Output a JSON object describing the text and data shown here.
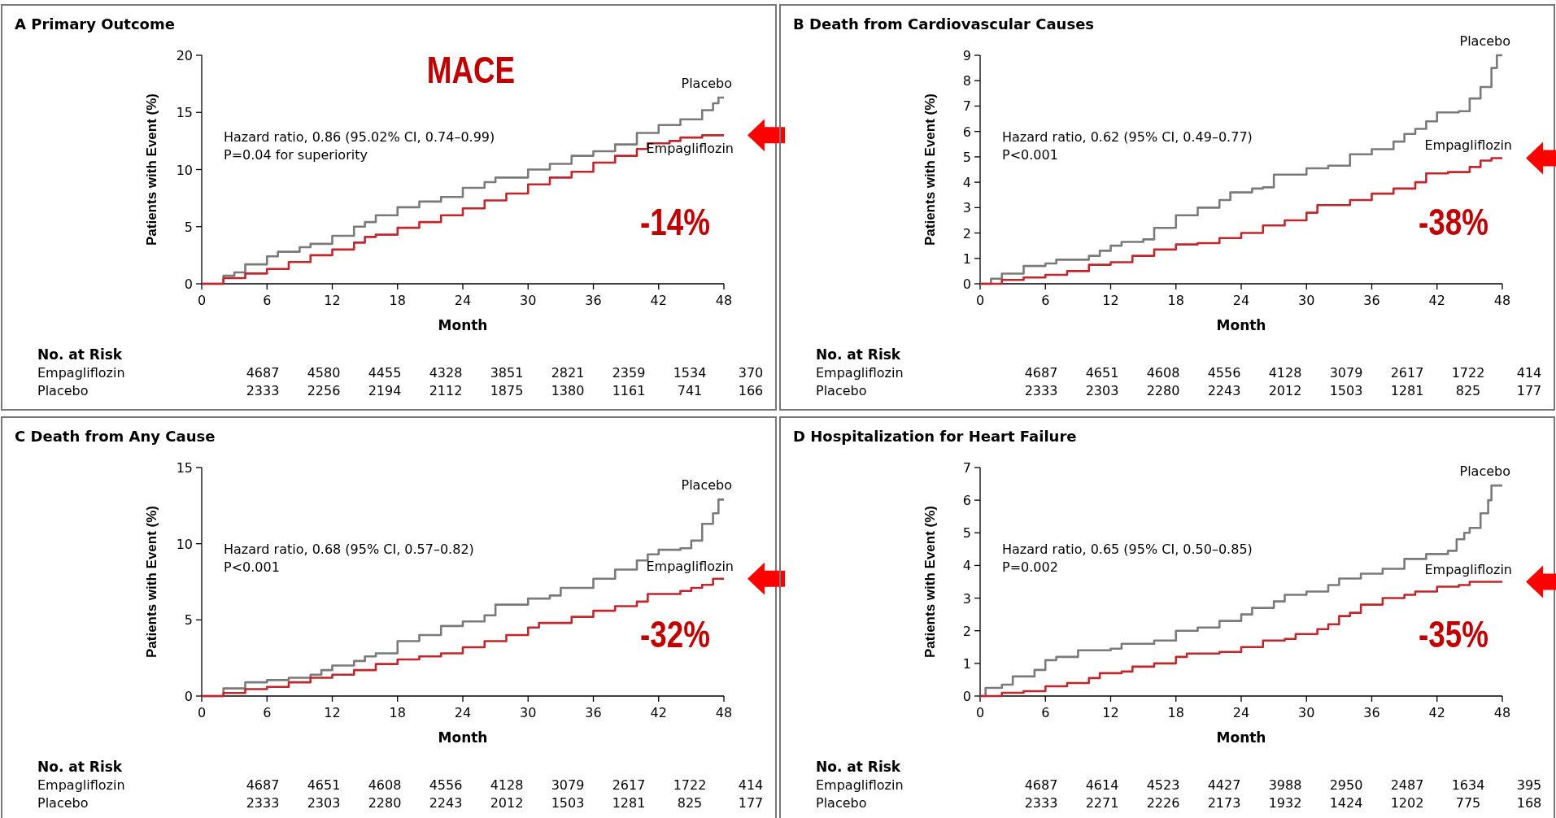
{
  "chart_data": [
    {
      "type": "step",
      "title": "A  Primary Outcome",
      "xlabel": "Month",
      "ylabel": "Patients with Event (%)",
      "xlim": [
        0,
        48
      ],
      "xticks": [
        0,
        6,
        12,
        18,
        24,
        30,
        36,
        42,
        48
      ],
      "ylim": [
        0,
        20
      ],
      "yticks": [
        0,
        5,
        10,
        15,
        20
      ],
      "legend": false,
      "annotations": [
        "Hazard ratio, 0.86 (95.02% CI, 0.74–0.99)",
        "P=0.04 for superiority",
        "-14%",
        "MACE",
        "No. at Risk",
        "Empagliflozin 4687 4580 4455 4328 3851 2821 2359 1534 370",
        "Placebo 2333 2256 2194 2112 1875 1380 1161 741 166"
      ],
      "series": [
        {
          "name": "Placebo",
          "color": "#7a7a7a",
          "x": [
            0,
            2,
            3,
            4,
            6,
            7,
            9,
            10,
            12,
            14,
            15,
            16,
            18,
            20,
            22,
            24,
            26,
            27,
            30,
            32,
            34,
            36,
            38,
            40,
            42,
            44,
            46,
            47,
            47.5,
            48
          ],
          "values": [
            0,
            0.7,
            1.0,
            1.7,
            2.4,
            2.8,
            3.2,
            3.5,
            4.2,
            5.0,
            5.4,
            6.0,
            6.7,
            7.2,
            7.6,
            8.4,
            8.9,
            9.3,
            10.0,
            10.5,
            11.2,
            11.6,
            12.2,
            13.2,
            13.9,
            14.4,
            15.2,
            15.8,
            16.3,
            16.3
          ]
        },
        {
          "name": "Empagliflozin",
          "color": "#c0272d",
          "x": [
            0,
            2,
            4,
            6,
            8,
            10,
            12,
            14,
            15,
            16,
            18,
            20,
            22,
            24,
            26,
            28,
            30,
            32,
            34,
            36,
            38,
            40,
            41,
            43,
            44,
            46,
            48
          ],
          "values": [
            0,
            0.5,
            0.9,
            1.3,
            1.9,
            2.5,
            3.0,
            3.6,
            4.1,
            4.3,
            4.9,
            5.4,
            6.0,
            6.6,
            7.3,
            7.9,
            8.7,
            9.3,
            9.8,
            10.6,
            11.2,
            11.8,
            12.3,
            12.5,
            12.8,
            13.0,
            13.0
          ]
        }
      ]
    },
    {
      "type": "step",
      "title": "B  Death from Cardiovascular Causes",
      "xlabel": "Month",
      "ylabel": "Patients with Event (%)",
      "xlim": [
        0,
        48
      ],
      "xticks": [
        0,
        6,
        12,
        18,
        24,
        30,
        36,
        42,
        48
      ],
      "ylim": [
        0,
        9
      ],
      "yticks": [
        0,
        1,
        2,
        3,
        4,
        5,
        6,
        7,
        8,
        9
      ],
      "legend": false,
      "annotations": [
        "Hazard ratio, 0.62 (95% CI, 0.49–0.77)",
        "P<0.001",
        "-38%",
        "No. at Risk",
        "Empagliflozin 4687 4651 4608 4556 4128 3079 2617 1722 414",
        "Placebo 2333 2303 2280 2243 2012 1503 1281 825 177"
      ],
      "series": [
        {
          "name": "Placebo",
          "color": "#7a7a7a",
          "x": [
            0,
            1,
            2,
            4,
            6,
            7,
            10,
            11,
            12,
            13,
            15,
            16,
            18,
            20,
            22,
            23,
            25,
            26,
            27,
            30,
            32,
            34,
            36,
            38,
            39,
            40,
            41,
            42,
            44,
            45,
            46,
            47,
            47.5,
            48
          ],
          "values": [
            0,
            0.2,
            0.4,
            0.7,
            0.8,
            0.95,
            1.1,
            1.3,
            1.5,
            1.65,
            1.75,
            2.2,
            2.7,
            3.0,
            3.3,
            3.6,
            3.75,
            3.8,
            4.3,
            4.55,
            4.65,
            5.1,
            5.3,
            5.6,
            5.9,
            6.1,
            6.4,
            6.75,
            6.8,
            7.3,
            7.75,
            8.5,
            9.0,
            9.0
          ]
        },
        {
          "name": "Empagliflozin",
          "color": "#c0272d",
          "x": [
            0,
            2,
            4,
            6,
            8,
            10,
            12,
            14,
            16,
            18,
            20,
            22,
            24,
            26,
            28,
            30,
            31,
            34,
            36,
            38,
            40,
            41,
            43,
            45,
            46,
            47,
            48
          ],
          "values": [
            0,
            0.15,
            0.25,
            0.35,
            0.5,
            0.75,
            0.85,
            1.1,
            1.35,
            1.55,
            1.6,
            1.8,
            2.0,
            2.3,
            2.5,
            2.8,
            3.1,
            3.3,
            3.55,
            3.75,
            4.0,
            4.35,
            4.4,
            4.6,
            4.85,
            4.95,
            4.95
          ]
        }
      ]
    },
    {
      "type": "step",
      "title": "C  Death from Any Cause",
      "xlabel": "Month",
      "ylabel": "Patients with Event (%)",
      "xlim": [
        0,
        48
      ],
      "xticks": [
        0,
        6,
        12,
        18,
        24,
        30,
        36,
        42,
        48
      ],
      "ylim": [
        0,
        15
      ],
      "yticks": [
        0,
        5,
        10,
        15
      ],
      "legend": false,
      "annotations": [
        "Hazard ratio, 0.68 (95% CI, 0.57–0.82)",
        "P<0.001",
        "-32%",
        "No. at Risk",
        "Empagliflozin 4687 4651 4608 4556 4128 3079 2617 1722 414",
        "Placebo 2333 2303 2280 2243 2012 1503 1281 825 177"
      ],
      "series": [
        {
          "name": "Placebo",
          "color": "#7a7a7a",
          "x": [
            0,
            2,
            4,
            6,
            8,
            10,
            11,
            12,
            14,
            15,
            16,
            18,
            20,
            22,
            24,
            26,
            27,
            30,
            32,
            33,
            36,
            38,
            40,
            41,
            42,
            44,
            45,
            46,
            47,
            47.5,
            48
          ],
          "values": [
            0,
            0.5,
            0.9,
            1.05,
            1.2,
            1.4,
            1.7,
            2.0,
            2.3,
            2.6,
            2.8,
            3.6,
            4.0,
            4.6,
            4.9,
            5.3,
            6.0,
            6.4,
            6.6,
            7.1,
            7.7,
            8.3,
            8.9,
            9.3,
            9.6,
            9.7,
            10.2,
            11.3,
            12.0,
            12.9,
            12.9
          ]
        },
        {
          "name": "Empagliflozin",
          "color": "#c0272d",
          "x": [
            0,
            2,
            4,
            6,
            8,
            10,
            12,
            14,
            16,
            18,
            20,
            22,
            24,
            26,
            28,
            30,
            31,
            34,
            36,
            38,
            40,
            41,
            44,
            45,
            46,
            47,
            48
          ],
          "values": [
            0,
            0.2,
            0.45,
            0.6,
            0.9,
            1.2,
            1.4,
            1.7,
            2.1,
            2.4,
            2.6,
            2.8,
            3.2,
            3.6,
            4.0,
            4.5,
            4.8,
            5.2,
            5.6,
            5.9,
            6.2,
            6.7,
            6.9,
            7.1,
            7.3,
            7.7,
            7.7
          ]
        }
      ]
    },
    {
      "type": "step",
      "title": "D  Hospitalization for Heart Failure",
      "xlabel": "Month",
      "ylabel": "Patients with Event (%)",
      "xlim": [
        0,
        48
      ],
      "xticks": [
        0,
        6,
        12,
        18,
        24,
        30,
        36,
        42,
        48
      ],
      "ylim": [
        0,
        7
      ],
      "yticks": [
        0,
        1,
        2,
        3,
        4,
        5,
        6,
        7
      ],
      "legend": false,
      "annotations": [
        "Hazard ratio, 0.65 (95% CI, 0.50–0.85)",
        "P=0.002",
        "-35%",
        "No. at Risk",
        "Empagliflozin 4687 4614 4523 4427 3988 2950 2487 1634 395",
        "Placebo 2333 2271 2226 2173 1932 1424 1202 775 168"
      ],
      "series": [
        {
          "name": "Placebo",
          "color": "#7a7a7a",
          "x": [
            0,
            0.5,
            2,
            3,
            5,
            6,
            7,
            9,
            12,
            13,
            16,
            18,
            20,
            22,
            24,
            25,
            27,
            28,
            30,
            32,
            33,
            35,
            37,
            39,
            41,
            43,
            43.8,
            44.5,
            45,
            46,
            46.7,
            47,
            48
          ],
          "values": [
            0,
            0.25,
            0.35,
            0.6,
            0.8,
            1.1,
            1.2,
            1.4,
            1.45,
            1.6,
            1.7,
            2.0,
            2.1,
            2.3,
            2.5,
            2.7,
            2.9,
            3.1,
            3.2,
            3.4,
            3.6,
            3.75,
            3.9,
            4.2,
            4.35,
            4.45,
            4.8,
            5.0,
            5.15,
            5.6,
            6.0,
            6.45,
            6.45
          ]
        },
        {
          "name": "Empagliflozin",
          "color": "#c0272d",
          "x": [
            0,
            2,
            4,
            6,
            8,
            10,
            11,
            13,
            14,
            16,
            18,
            19,
            22,
            24,
            26,
            28,
            29,
            31,
            32,
            33,
            34,
            35,
            37,
            39,
            40,
            42,
            44,
            45,
            48
          ],
          "values": [
            0,
            0.1,
            0.15,
            0.3,
            0.4,
            0.55,
            0.7,
            0.75,
            0.9,
            1.0,
            1.2,
            1.3,
            1.35,
            1.5,
            1.7,
            1.75,
            1.9,
            2.05,
            2.2,
            2.45,
            2.55,
            2.8,
            3.0,
            3.1,
            3.2,
            3.35,
            3.4,
            3.5,
            3.5
          ]
        }
      ]
    }
  ]
}
